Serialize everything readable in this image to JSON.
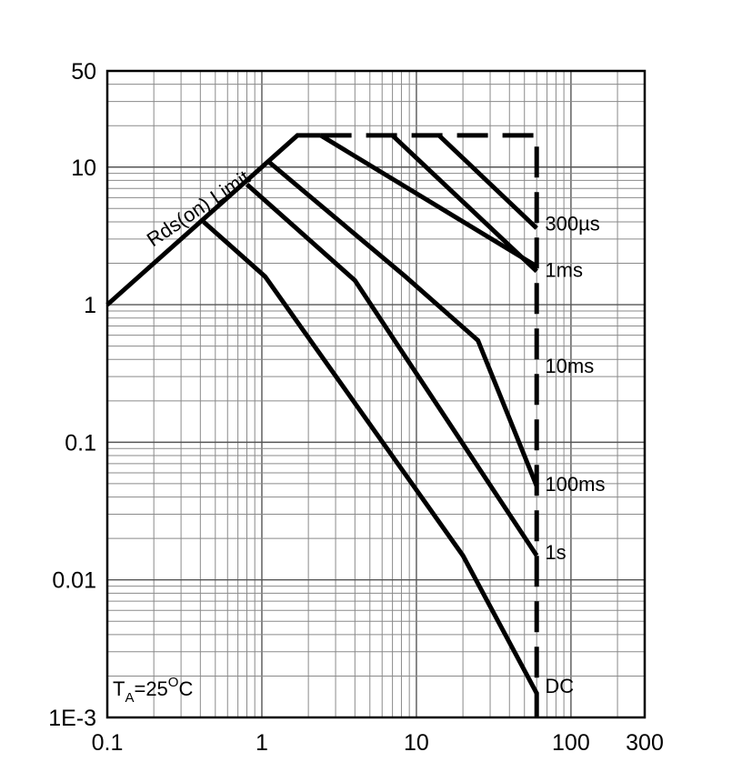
{
  "chart_data": {
    "type": "line",
    "title": "",
    "xlabel": "",
    "ylabel": "",
    "x_scale": "log",
    "y_scale": "log",
    "xlim": [
      0.1,
      300
    ],
    "ylim": [
      0.001,
      50
    ],
    "grid": true,
    "x_ticks": [
      {
        "value": 0.1,
        "label": "0.1"
      },
      {
        "value": 1,
        "label": "1"
      },
      {
        "value": 10,
        "label": "10"
      },
      {
        "value": 100,
        "label": "100"
      },
      {
        "value": 300,
        "label": "300"
      }
    ],
    "y_ticks": [
      {
        "value": 0.001,
        "label": "1E-3"
      },
      {
        "value": 0.01,
        "label": "0.01"
      },
      {
        "value": 0.1,
        "label": "0.1"
      },
      {
        "value": 1,
        "label": "1"
      },
      {
        "value": 10,
        "label": "10"
      },
      {
        "value": 50,
        "label": "50"
      }
    ],
    "series": [
      {
        "name": "Rds(on) Limit",
        "style": "solid",
        "points": [
          [
            0.1,
            1.0
          ],
          [
            1.7,
            17.0
          ],
          [
            2.4,
            17.0
          ]
        ]
      },
      {
        "name": "300µs",
        "style": "dashed",
        "points": [
          [
            2.4,
            17.0
          ],
          [
            60,
            17.0
          ],
          [
            60,
            0.001
          ]
        ]
      },
      {
        "name": "300µs",
        "style": "solid",
        "points": [
          [
            2.4,
            17.0
          ],
          [
            60,
            1.9
          ]
        ]
      },
      {
        "name": "1ms",
        "style": "solid",
        "points": [
          [
            1.1,
            11.0
          ],
          [
            8.5,
            1.6
          ],
          [
            25,
            0.55
          ],
          [
            60,
            0.048
          ]
        ]
      },
      {
        "name": "10ms",
        "style": "solid",
        "points": [
          [
            0.8,
            7.5
          ],
          [
            4,
            1.5
          ],
          [
            60,
            0.015
          ]
        ]
      },
      {
        "name": "100ms",
        "style": "solid",
        "points": [
          [
            0.42,
            4.0
          ],
          [
            1.05,
            1.6
          ],
          [
            20,
            0.015
          ],
          [
            60,
            0.0015
          ]
        ]
      },
      {
        "name": "1s",
        "style": "solid",
        "points": [
          [
            7,
            17.0
          ],
          [
            60,
            1.75
          ]
        ]
      },
      {
        "name": "DC",
        "style": "solid",
        "points": [
          [
            14,
            17.0
          ],
          [
            60,
            3.6
          ]
        ]
      }
    ],
    "curve_labels": [
      {
        "text": "300µs",
        "x": 68,
        "y": 3.9
      },
      {
        "text": "1ms",
        "x": 68,
        "y": 1.8
      },
      {
        "text": "10ms",
        "x": 68,
        "y": 0.36
      },
      {
        "text": "100ms",
        "x": 68,
        "y": 0.05
      },
      {
        "text": "1s",
        "x": 68,
        "y": 0.016
      },
      {
        "text": "DC",
        "x": 68,
        "y": 0.0017
      }
    ],
    "annotations": [
      {
        "text": "Rds(on) Limit",
        "rotated": true
      },
      {
        "text": "T",
        "sub": "A",
        "rest": "=25",
        "sup": "O",
        "end": "C"
      }
    ]
  }
}
